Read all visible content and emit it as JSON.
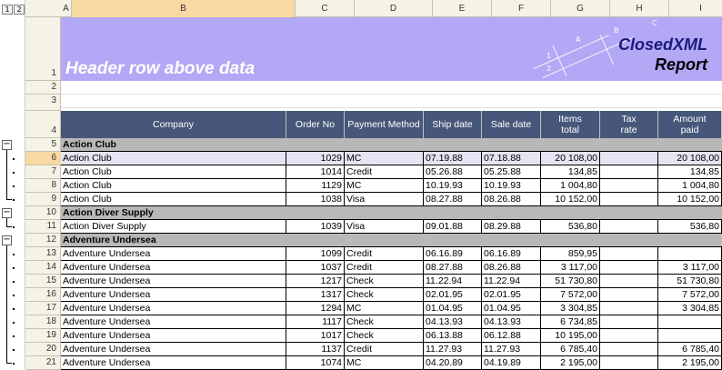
{
  "outline": {
    "levels": [
      "1",
      "2"
    ]
  },
  "columns": [
    "A",
    "B",
    "C",
    "D",
    "E",
    "F",
    "G",
    "H",
    "I"
  ],
  "selected_column": "B",
  "rows": [
    "1",
    "2",
    "3",
    "4",
    "5",
    "6",
    "7",
    "8",
    "9",
    "10",
    "11",
    "12",
    "13",
    "14",
    "15",
    "16",
    "17",
    "18",
    "19",
    "20",
    "21"
  ],
  "selected_row": "6",
  "banner": {
    "title": "Header row above data",
    "brand_line1": "ClosedXML",
    "brand_line2": "Report",
    "deco": [
      "A",
      "B",
      "C",
      "1",
      "2"
    ]
  },
  "table_header": {
    "company": "Company",
    "order_no": "Order No",
    "payment_method": "Payment Method",
    "ship_date": "Ship date",
    "sale_date": "Sale date",
    "items_total": "Items total",
    "tax_rate": "Tax rate",
    "amount_paid": "Amount paid"
  },
  "groups": [
    {
      "name": "Action Club",
      "rows": [
        {
          "company": "Action Club",
          "order": "1029",
          "pay": "MC",
          "ship": "07.19.88",
          "sale": "07.18.88",
          "items": "20 108,00",
          "tax": "",
          "paid": "20 108,00"
        },
        {
          "company": "Action Club",
          "order": "1014",
          "pay": "Credit",
          "ship": "05.26.88",
          "sale": "05.25.88",
          "items": "134,85",
          "tax": "",
          "paid": "134,85"
        },
        {
          "company": "Action Club",
          "order": "1129",
          "pay": "MC",
          "ship": "10.19.93",
          "sale": "10.19.93",
          "items": "1 004,80",
          "tax": "",
          "paid": "1 004,80"
        },
        {
          "company": "Action Club",
          "order": "1038",
          "pay": "Visa",
          "ship": "08.27.88",
          "sale": "08.26.88",
          "items": "10 152,00",
          "tax": "",
          "paid": "10 152,00"
        }
      ]
    },
    {
      "name": "Action Diver Supply",
      "rows": [
        {
          "company": "Action Diver Supply",
          "order": "1039",
          "pay": "Visa",
          "ship": "09.01.88",
          "sale": "08.29.88",
          "items": "536,80",
          "tax": "",
          "paid": "536,80"
        }
      ]
    },
    {
      "name": "Adventure Undersea",
      "rows": [
        {
          "company": "Adventure Undersea",
          "order": "1099",
          "pay": "Credit",
          "ship": "06.16.89",
          "sale": "06.16.89",
          "items": "859,95",
          "tax": "",
          "paid": ""
        },
        {
          "company": "Adventure Undersea",
          "order": "1037",
          "pay": "Credit",
          "ship": "08.27.88",
          "sale": "08.26.88",
          "items": "3 117,00",
          "tax": "",
          "paid": "3 117,00"
        },
        {
          "company": "Adventure Undersea",
          "order": "1217",
          "pay": "Check",
          "ship": "11.22.94",
          "sale": "11.22.94",
          "items": "51 730,80",
          "tax": "",
          "paid": "51 730,80"
        },
        {
          "company": "Adventure Undersea",
          "order": "1317",
          "pay": "Check",
          "ship": "02.01.95",
          "sale": "02.01.95",
          "items": "7 572,00",
          "tax": "",
          "paid": "7 572,00"
        },
        {
          "company": "Adventure Undersea",
          "order": "1294",
          "pay": "MC",
          "ship": "01.04.95",
          "sale": "01.04.95",
          "items": "3 304,85",
          "tax": "",
          "paid": "3 304,85"
        },
        {
          "company": "Adventure Undersea",
          "order": "1117",
          "pay": "Check",
          "ship": "04.13.93",
          "sale": "04.13.93",
          "items": "6 734,85",
          "tax": "",
          "paid": ""
        },
        {
          "company": "Adventure Undersea",
          "order": "1017",
          "pay": "Check",
          "ship": "06.13.88",
          "sale": "06.12.88",
          "items": "10 195,00",
          "tax": "",
          "paid": ""
        },
        {
          "company": "Adventure Undersea",
          "order": "1137",
          "pay": "Credit",
          "ship": "11.27.93",
          "sale": "11.27.93",
          "items": "6 785,40",
          "tax": "",
          "paid": "6 785,40"
        },
        {
          "company": "Adventure Undersea",
          "order": "1074",
          "pay": "MC",
          "ship": "04.20.89",
          "sale": "04.19.89",
          "items": "2 195,00",
          "tax": "",
          "paid": "2 195,00"
        }
      ]
    }
  ],
  "colors": {
    "banner": "#b3a8f5",
    "table_header": "#47577a",
    "group_row": "#b8b8b8",
    "selection": "#f9d9a2"
  }
}
